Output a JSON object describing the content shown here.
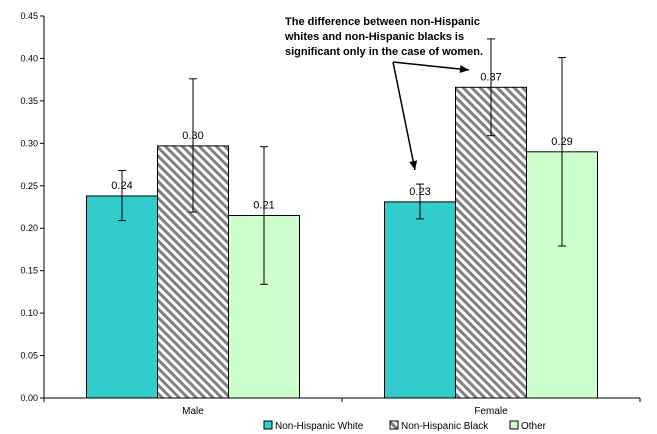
{
  "chart_data": {
    "type": "bar",
    "categories": [
      "Male",
      "Female"
    ],
    "series": [
      {
        "name": "Non-Hispanic White",
        "values": [
          0.238,
          0.231
        ],
        "labels": [
          "0.24",
          "0.23"
        ],
        "err_low": [
          0.209,
          0.211
        ],
        "err_high": [
          0.268,
          0.252
        ],
        "color": "#33CCCC",
        "pattern": "solid"
      },
      {
        "name": "Non-Hispanic Black",
        "values": [
          0.297,
          0.366
        ],
        "labels": [
          "0.30",
          "0.37"
        ],
        "err_low": [
          0.219,
          0.309
        ],
        "err_high": [
          0.376,
          0.423
        ],
        "color": "#808080",
        "pattern": "diagonal-hatch"
      },
      {
        "name": "Other",
        "values": [
          0.215,
          0.29
        ],
        "labels": [
          "0.21",
          "0.29"
        ],
        "err_low": [
          0.134,
          0.179
        ],
        "err_high": [
          0.296,
          0.401
        ],
        "color": "#CCFFCC",
        "pattern": "solid"
      }
    ],
    "ylim": [
      0,
      0.45
    ],
    "yticks": [
      "0.00",
      "0.05",
      "0.10",
      "0.15",
      "0.20",
      "0.25",
      "0.30",
      "0.35",
      "0.40",
      "0.45"
    ],
    "title": "",
    "xlabel": "",
    "ylabel": "",
    "legend_position": "bottom",
    "grid": false,
    "annotation": {
      "lines": [
        "The difference between non-Hispanic",
        "whites and non-Hispanic blacks is",
        "significant only in the case of women."
      ]
    }
  }
}
